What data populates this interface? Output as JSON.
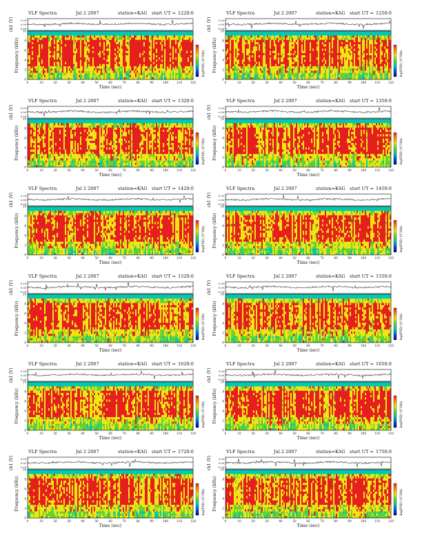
{
  "chart_data": [
    {
      "type": "heatmap",
      "title": "VLF Spectra",
      "date": "Jul 2 2007",
      "station": "station=KAG",
      "start_label": "start UT =",
      "start_value": "1220:0",
      "xlabel": "Time (sec)",
      "ylabel": "Frequency (kHz)",
      "top_ylabel": "ch1 (V)",
      "top_ticks": [
        "0.20",
        "0.00",
        "-0.20"
      ],
      "x_ticks": [
        "0",
        "10",
        "20",
        "30",
        "40",
        "50",
        "60",
        "70",
        "80",
        "90",
        "100",
        "110",
        "120"
      ],
      "y_ticks": [
        "0",
        "2",
        "4",
        "6",
        "8",
        "10"
      ],
      "xlim": [
        0,
        120
      ],
      "ylim": [
        0,
        10
      ],
      "colorbar_label": "log(PSD) (V²/Hz)",
      "seed": 11
    },
    {
      "type": "heatmap",
      "title": "VLF Spectra",
      "date": "Jul 2 2007",
      "station": "station=KAG",
      "start_label": "start UT =",
      "start_value": "1250:0",
      "xlabel": "Time (sec)",
      "ylabel": "Frequency (kHz)",
      "top_ylabel": "ch1 (V)",
      "top_ticks": [
        "0.20",
        "0.00",
        "-0.20"
      ],
      "x_ticks": [
        "0",
        "10",
        "20",
        "30",
        "40",
        "50",
        "60",
        "70",
        "80",
        "90",
        "100",
        "110",
        "120"
      ],
      "y_ticks": [
        "0",
        "2",
        "4",
        "6",
        "8",
        "10"
      ],
      "xlim": [
        0,
        120
      ],
      "ylim": [
        0,
        10
      ],
      "colorbar_label": "log(PSD) (V²/Hz)",
      "seed": 12
    },
    {
      "type": "heatmap",
      "title": "VLF Spectra",
      "date": "Jul 2 2007",
      "station": "station=KAG",
      "start_label": "start UT =",
      "start_value": "1320:0",
      "xlabel": "Time (sec)",
      "ylabel": "Frequency (kHz)",
      "top_ylabel": "ch1 (V)",
      "top_ticks": [
        "0.20",
        "0.00",
        "-0.20"
      ],
      "x_ticks": [
        "0",
        "10",
        "20",
        "30",
        "40",
        "50",
        "60",
        "70",
        "80",
        "90",
        "100",
        "110",
        "120"
      ],
      "y_ticks": [
        "0",
        "2",
        "4",
        "6",
        "8",
        "10"
      ],
      "xlim": [
        0,
        120
      ],
      "ylim": [
        0,
        10
      ],
      "colorbar_label": "log(PSD) (V²/Hz)",
      "seed": 13
    },
    {
      "type": "heatmap",
      "title": "VLF Spectra",
      "date": "Jul 2 2007",
      "station": "station=KAG",
      "start_label": "start UT =",
      "start_value": "1350:0",
      "xlabel": "Time (sec)",
      "ylabel": "Frequency (kHz)",
      "top_ylabel": "ch1 (V)",
      "top_ticks": [
        "0.20",
        "0.00",
        "-0.20"
      ],
      "x_ticks": [
        "0",
        "10",
        "20",
        "30",
        "40",
        "50",
        "60",
        "70",
        "80",
        "90",
        "100",
        "110",
        "120"
      ],
      "y_ticks": [
        "0",
        "2",
        "4",
        "6",
        "8",
        "10"
      ],
      "xlim": [
        0,
        120
      ],
      "ylim": [
        0,
        10
      ],
      "colorbar_label": "log(PSD) (V²/Hz)",
      "seed": 14
    },
    {
      "type": "heatmap",
      "title": "VLF Spectra",
      "date": "Jul 2 2007",
      "station": "station=KAG",
      "start_label": "start UT =",
      "start_value": "1420:0",
      "xlabel": "Time (sec)",
      "ylabel": "Frequency (kHz)",
      "top_ylabel": "ch1 (V)",
      "top_ticks": [
        "0.20",
        "0.00",
        "-0.20"
      ],
      "x_ticks": [
        "0",
        "10",
        "20",
        "30",
        "40",
        "50",
        "60",
        "70",
        "80",
        "90",
        "100",
        "110",
        "120"
      ],
      "y_ticks": [
        "0",
        "2",
        "4",
        "6",
        "8",
        "10"
      ],
      "xlim": [
        0,
        120
      ],
      "ylim": [
        0,
        10
      ],
      "colorbar_label": "log(PSD) (V²/Hz)",
      "seed": 15
    },
    {
      "type": "heatmap",
      "title": "VLF Spectra",
      "date": "Jul 2 2007",
      "station": "station=KAG",
      "start_label": "start UT =",
      "start_value": "1450:0",
      "xlabel": "Time (sec)",
      "ylabel": "Frequency (kHz)",
      "top_ylabel": "ch1 (V)",
      "top_ticks": [
        "0.20",
        "0.00",
        "-0.20"
      ],
      "x_ticks": [
        "0",
        "10",
        "20",
        "30",
        "40",
        "50",
        "60",
        "70",
        "80",
        "90",
        "100",
        "110",
        "120"
      ],
      "y_ticks": [
        "0",
        "2",
        "4",
        "6",
        "8",
        "10"
      ],
      "xlim": [
        0,
        120
      ],
      "ylim": [
        0,
        10
      ],
      "colorbar_label": "log(PSD) (V²/Hz)",
      "seed": 16
    },
    {
      "type": "heatmap",
      "title": "VLF Spectra",
      "date": "Jul 2 2007",
      "station": "station=KAG",
      "start_label": "start UT =",
      "start_value": "1520:0",
      "xlabel": "Time (sec)",
      "ylabel": "Frequency (kHz)",
      "top_ylabel": "ch1 (V)",
      "top_ticks": [
        "0.20",
        "0.00",
        "-0.20"
      ],
      "x_ticks": [
        "0",
        "10",
        "20",
        "30",
        "40",
        "50",
        "60",
        "70",
        "80",
        "90",
        "100",
        "110",
        "120"
      ],
      "y_ticks": [
        "0",
        "2",
        "4",
        "6",
        "8",
        "10"
      ],
      "xlim": [
        0,
        120
      ],
      "ylim": [
        0,
        10
      ],
      "colorbar_label": "log(PSD) (V²/Hz)",
      "seed": 17
    },
    {
      "type": "heatmap",
      "title": "VLF Spectra",
      "date": "Jul 2 2007",
      "station": "station=KAG",
      "start_label": "start UT =",
      "start_value": "1550:0",
      "xlabel": "Time (sec)",
      "ylabel": "Frequency (kHz)",
      "top_ylabel": "ch1 (V)",
      "top_ticks": [
        "0.20",
        "0.00",
        "-0.20"
      ],
      "x_ticks": [
        "0",
        "10",
        "20",
        "30",
        "40",
        "50",
        "60",
        "70",
        "80",
        "90",
        "100",
        "110",
        "120"
      ],
      "y_ticks": [
        "0",
        "2",
        "4",
        "6",
        "8",
        "10"
      ],
      "xlim": [
        0,
        120
      ],
      "ylim": [
        0,
        10
      ],
      "colorbar_label": "log(PSD) (V²/Hz)",
      "seed": 18
    },
    {
      "type": "heatmap",
      "title": "VLF Spectra",
      "date": "Jul 2 2007",
      "station": "station=KAG",
      "start_label": "start UT =",
      "start_value": "1620:0",
      "xlabel": "Time (sec)",
      "ylabel": "Frequency (kHz)",
      "top_ylabel": "ch1 (V)",
      "top_ticks": [
        "0.20",
        "0.00",
        "-0.20"
      ],
      "x_ticks": [
        "0",
        "10",
        "20",
        "30",
        "40",
        "50",
        "60",
        "70",
        "80",
        "90",
        "100",
        "110",
        "120"
      ],
      "y_ticks": [
        "0",
        "2",
        "4",
        "6",
        "8",
        "10"
      ],
      "xlim": [
        0,
        120
      ],
      "ylim": [
        0,
        10
      ],
      "colorbar_label": "log(PSD) (V²/Hz)",
      "seed": 19
    },
    {
      "type": "heatmap",
      "title": "VLF Spectra",
      "date": "Jul 2 2007",
      "station": "station=KAG",
      "start_label": "start UT =",
      "start_value": "1650:0",
      "xlabel": "Time (sec)",
      "ylabel": "Frequency (kHz)",
      "top_ylabel": "ch1 (V)",
      "top_ticks": [
        "0.20",
        "0.00",
        "-0.20"
      ],
      "x_ticks": [
        "0",
        "10",
        "20",
        "30",
        "40",
        "50",
        "60",
        "70",
        "80",
        "90",
        "100",
        "110",
        "120"
      ],
      "y_ticks": [
        "0",
        "2",
        "4",
        "6",
        "8",
        "10"
      ],
      "xlim": [
        0,
        120
      ],
      "ylim": [
        0,
        10
      ],
      "colorbar_label": "log(PSD) (V²/Hz)",
      "seed": 20
    },
    {
      "type": "heatmap",
      "title": "VLF Spectra",
      "date": "Jul 2 2007",
      "station": "station=KAG",
      "start_label": "start UT =",
      "start_value": "1720:0",
      "xlabel": "Time (sec)",
      "ylabel": "Frequency (kHz)",
      "top_ylabel": "ch1 (V)",
      "top_ticks": [
        "0.20",
        "0.00",
        "-0.20"
      ],
      "x_ticks": [
        "0",
        "10",
        "20",
        "30",
        "40",
        "50",
        "60",
        "70",
        "80",
        "90",
        "100",
        "110",
        "120"
      ],
      "y_ticks": [
        "0",
        "2",
        "4",
        "6",
        "8",
        "10"
      ],
      "xlim": [
        0,
        120
      ],
      "ylim": [
        0,
        10
      ],
      "colorbar_label": "log(PSD) (V²/Hz)",
      "seed": 21
    },
    {
      "type": "heatmap",
      "title": "VLF Spectra",
      "date": "Jul 2 2007",
      "station": "station=KAG",
      "start_label": "start UT =",
      "start_value": "1750:0",
      "xlabel": "Time (sec)",
      "ylabel": "Frequency (kHz)",
      "top_ylabel": "ch1 (V)",
      "top_ticks": [
        "0.20",
        "0.00",
        "-0.20"
      ],
      "x_ticks": [
        "0",
        "10",
        "20",
        "30",
        "40",
        "50",
        "60",
        "70",
        "80",
        "90",
        "100",
        "110",
        "120"
      ],
      "y_ticks": [
        "0",
        "2",
        "4",
        "6",
        "8",
        "10"
      ],
      "xlim": [
        0,
        120
      ],
      "ylim": [
        0,
        10
      ],
      "colorbar_label": "log(PSD) (V²/Hz)",
      "seed": 22
    }
  ],
  "colors": {
    "spectrogram_low": "#00c8b4",
    "spectrogram_mid": "#64d232",
    "spectrogram_high": "#f0e614",
    "spectrogram_peak": "#e61e1e",
    "colorbar": [
      "#e61e1e",
      "#ff8c00",
      "#f0e614",
      "#64d232",
      "#00c8b4",
      "#0050dc",
      "#000090"
    ],
    "waveform": "#222222"
  }
}
